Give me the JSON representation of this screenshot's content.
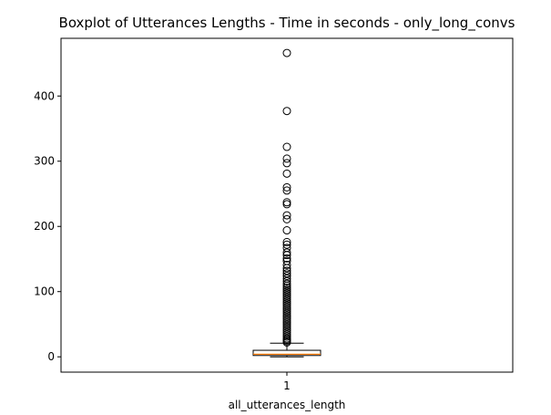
{
  "chart_data": {
    "type": "boxplot",
    "title": "Boxplot of Utterances Lengths - Time in seconds - only_long_convs",
    "xlabel": "all_utterances_length",
    "ylabel": "",
    "x_tick_labels": [
      "1"
    ],
    "y_ticks": [
      0,
      100,
      200,
      300,
      400
    ],
    "ylim": [
      -23.5,
      488.5
    ],
    "grid": false,
    "colors": {
      "box_edge": "#000000",
      "median": "#ff7f0e",
      "flier": "#000000"
    },
    "box": {
      "label": "1",
      "whisker_low": 0,
      "q1": 2,
      "median": 4,
      "q3": 10,
      "whisker_high": 21
    },
    "outliers": [
      466,
      377,
      322,
      304,
      297,
      281,
      260,
      255,
      237,
      234,
      217,
      211,
      194,
      176,
      172,
      167,
      160,
      156,
      151,
      147,
      141,
      136,
      132,
      128,
      124,
      120,
      116,
      112,
      109,
      106,
      103,
      100,
      97,
      94,
      91,
      88,
      85,
      82,
      79,
      76,
      73,
      70,
      67,
      64,
      61,
      58,
      55,
      52,
      49,
      46,
      43,
      40,
      37,
      34,
      31,
      28,
      26,
      24,
      22
    ]
  }
}
